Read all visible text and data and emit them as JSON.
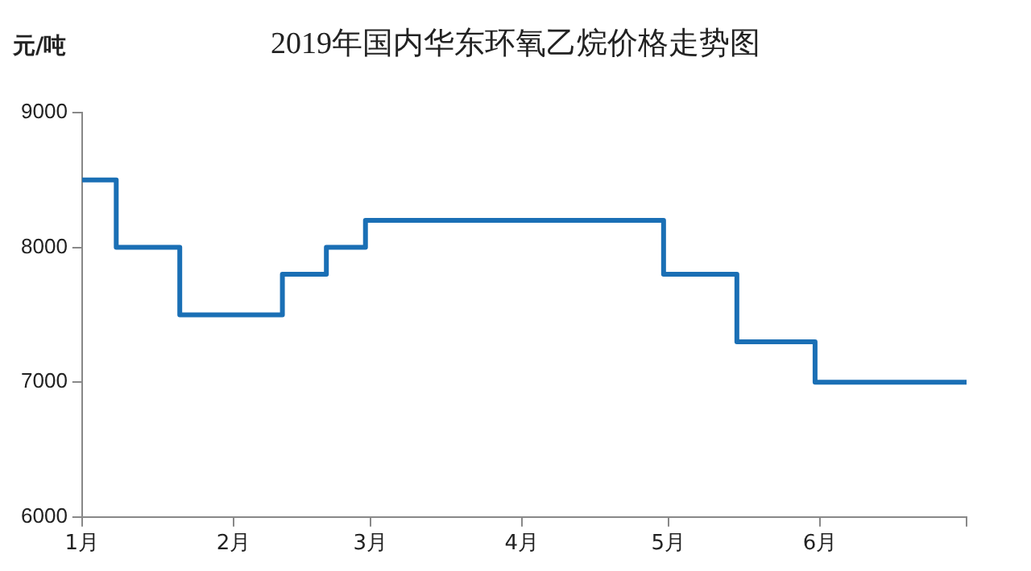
{
  "chart_data": {
    "type": "step",
    "title": "2019年国内华东环氧乙烷价格走势图",
    "ylabel": "元/吨",
    "x": [
      "--01-01",
      "--01-08",
      "--01-21",
      "--02-11",
      "--02-20",
      "--02-28",
      "--04-30",
      "--05-15",
      "--05-31",
      "--07-01"
    ],
    "series": [
      {
        "color": "#1a6fb5",
        "values": [
          8500,
          8000,
          7500,
          7800,
          8000,
          8200,
          7800,
          7300,
          7000,
          7000
        ]
      }
    ],
    "xlim": [
      "--01-01",
      "--07-01"
    ],
    "xticks": [
      {
        "value": "--01-01",
        "label": "1月"
      },
      {
        "value": "--02-01",
        "label": "2月"
      },
      {
        "value": "--03-01",
        "label": "3月"
      },
      {
        "value": "--04-01",
        "label": "4月"
      },
      {
        "value": "--05-01",
        "label": "5月"
      },
      {
        "value": "--06-01",
        "label": "6月"
      },
      {
        "value": "--07-01",
        "label": null
      }
    ],
    "ylim": [
      6000,
      9000
    ],
    "yticks": [
      6000,
      7000,
      8000,
      9000
    ],
    "grid": false,
    "legend": false,
    "marker": "none",
    "line_style": "solid"
  }
}
